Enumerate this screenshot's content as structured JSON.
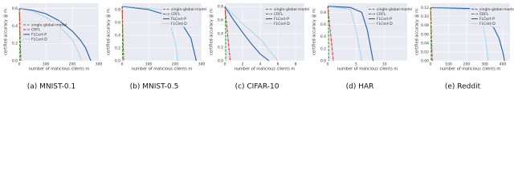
{
  "charts": [
    {
      "type": "line",
      "caption": "(a) MNIST-0.1",
      "xlabel": "number of malicious clients m",
      "ylabel": "certified accuracy @ m",
      "xlim": [
        0,
        300
      ],
      "xticks": [
        0,
        100,
        200,
        300
      ],
      "ylim": [
        0,
        0.66
      ],
      "yticks": [
        {
          "value": 0,
          "label": "0.0"
        },
        0.2,
        0.4,
        0.6
      ],
      "grid": true,
      "legend": "center left",
      "series": [
        {
          "name": "single-global-model",
          "color": "#2ca02c",
          "style": "dashed",
          "x": [
            0,
            1,
            2
          ],
          "values": [
            0.6,
            0.6,
            0
          ]
        },
        {
          "name": "CRFL",
          "color": "#d62728",
          "style": "dashdot",
          "x": [
            0,
            3,
            6
          ],
          "values": [
            0.6,
            0.3,
            0
          ]
        },
        {
          "name": "FLCert-P",
          "color": "#1f5fa8",
          "style": "solid",
          "x": [
            0,
            50,
            100,
            150,
            200,
            230,
            250,
            270
          ],
          "values": [
            0.6,
            0.58,
            0.54,
            0.46,
            0.34,
            0.24,
            0.15,
            0
          ]
        },
        {
          "name": "FLCert-D",
          "color": "#5bc0de",
          "style": "dotted",
          "x": [
            0,
            50,
            100,
            150,
            200,
            220,
            235
          ],
          "values": [
            0.6,
            0.57,
            0.5,
            0.4,
            0.24,
            0.12,
            0
          ]
        }
      ]
    },
    {
      "type": "line",
      "caption": "(b) MNIST-0.5",
      "xlabel": "number of malicious clients m",
      "ylabel": "certified accuracy @ m",
      "xlim": [
        0,
        300
      ],
      "xticks": [
        0,
        100,
        200,
        300
      ],
      "ylim": [
        0,
        0.9
      ],
      "yticks": [
        {
          "value": 0,
          "label": "0.0"
        },
        0.2,
        0.4,
        0.6,
        0.8
      ],
      "grid": true,
      "legend": "upper right",
      "series": [
        {
          "name": "single-global-model",
          "color": "#2ca02c",
          "style": "dashed",
          "x": [
            0,
            1,
            2
          ],
          "values": [
            0.85,
            0.85,
            0
          ]
        },
        {
          "name": "CRFL",
          "color": "#d62728",
          "style": "dashdot",
          "x": [
            0,
            3,
            6
          ],
          "values": [
            0.85,
            0.4,
            0
          ]
        },
        {
          "name": "FLCert-P",
          "color": "#1f5fa8",
          "style": "solid",
          "x": [
            0,
            100,
            180,
            230,
            260,
            280
          ],
          "values": [
            0.85,
            0.8,
            0.7,
            0.55,
            0.35,
            0
          ]
        },
        {
          "name": "FLCert-D",
          "color": "#5bc0de",
          "style": "dotted",
          "x": [
            0,
            150,
            180,
            200,
            210
          ],
          "values": [
            0.85,
            0.8,
            0.6,
            0.3,
            0
          ]
        }
      ]
    },
    {
      "type": "line",
      "caption": "(c) CIFAR-10",
      "xlabel": "number of malicious clients m",
      "ylabel": "certified accuracy @ m",
      "xlim": [
        0,
        9
      ],
      "xticks": [
        0,
        2,
        4,
        6,
        8
      ],
      "ylim": [
        0,
        0.85
      ],
      "yticks": [
        {
          "value": 0,
          "label": "0.0"
        },
        0.2,
        0.4,
        0.6,
        0.8
      ],
      "grid": true,
      "legend": "upper right",
      "series": [
        {
          "name": "single-global-model",
          "color": "#2ca02c",
          "style": "dashed",
          "x": [
            0,
            0.05,
            0.1
          ],
          "values": [
            0.8,
            0.8,
            0
          ]
        },
        {
          "name": "CRFL",
          "color": "#d62728",
          "style": "dashdot",
          "x": [
            0,
            0.3,
            0.6
          ],
          "values": [
            0.8,
            0.4,
            0
          ]
        },
        {
          "name": "FLCert-P",
          "color": "#1f5fa8",
          "style": "solid",
          "x": [
            0,
            1,
            2,
            3,
            4,
            5
          ],
          "values": [
            0.8,
            0.6,
            0.42,
            0.25,
            0.1,
            0
          ]
        },
        {
          "name": "FLCert-D",
          "color": "#5bc0de",
          "style": "dotted",
          "x": [
            0,
            2,
            4,
            5,
            6
          ],
          "values": [
            0.8,
            0.55,
            0.32,
            0.16,
            0
          ]
        }
      ]
    },
    {
      "type": "line",
      "caption": "(d) HAR",
      "xlabel": "number of malicious clients m",
      "ylabel": "certified accuracy @ m",
      "xlim": [
        0,
        14
      ],
      "xticks": [
        0,
        5,
        10
      ],
      "ylim": [
        0,
        0.95
      ],
      "yticks": [
        {
          "value": 0,
          "label": "0.0"
        },
        0.2,
        0.4,
        0.6,
        0.8
      ],
      "grid": true,
      "legend": "upper right",
      "series": [
        {
          "name": "single-global-model",
          "color": "#2ca02c",
          "style": "dashed",
          "x": [
            0,
            0.1,
            0.2
          ],
          "values": [
            0.9,
            0.9,
            0
          ]
        },
        {
          "name": "CRFL",
          "color": "#d62728",
          "style": "dashdot",
          "x": [
            0,
            0.5,
            1
          ],
          "values": [
            0.9,
            0.45,
            0
          ]
        },
        {
          "name": "FLCert-P",
          "color": "#1f5fa8",
          "style": "solid",
          "x": [
            0,
            4,
            6,
            7,
            8
          ],
          "values": [
            0.9,
            0.88,
            0.8,
            0.5,
            0
          ]
        },
        {
          "name": "FLCert-D",
          "color": "#5bc0de",
          "style": "dotted",
          "x": [
            0,
            4,
            5,
            6
          ],
          "values": [
            0.9,
            0.85,
            0.5,
            0
          ]
        }
      ]
    },
    {
      "type": "line",
      "caption": "(e) Reddit",
      "xlabel": "number of malicious clients m",
      "ylabel": "certified accuracy @ m",
      "xlim": [
        0,
        440
      ],
      "xticks": [
        0,
        100,
        200,
        300,
        400
      ],
      "ylim": [
        0,
        0.13
      ],
      "yticks": [
        {
          "value": 0,
          "label": "0.00"
        },
        {
          "value": 0.02,
          "label": "0.02"
        },
        {
          "value": 0.04,
          "label": "0.04"
        },
        {
          "value": 0.06,
          "label": "0.06"
        },
        {
          "value": 0.08,
          "label": "0.08"
        },
        {
          "value": 0.1,
          "label": "0.10"
        },
        {
          "value": 0.12,
          "label": "0.12"
        }
      ],
      "grid": true,
      "legend": "upper right",
      "series": [
        {
          "name": "single-global-model",
          "color": "#2ca02c",
          "style": "dashed",
          "x": [
            0,
            2,
            4
          ],
          "values": [
            0.12,
            0.12,
            0
          ]
        },
        {
          "name": "CRFL",
          "color": "#d62728",
          "style": "dashdot",
          "x": [
            0,
            5,
            10
          ],
          "values": [
            0.12,
            0.06,
            0
          ]
        },
        {
          "name": "FLCert-P",
          "color": "#1f5fa8",
          "style": "solid",
          "x": [
            0,
            250,
            300,
            330,
            350,
            380,
            400,
            410
          ],
          "values": [
            0.12,
            0.118,
            0.1,
            0.08,
            0.075,
            0.05,
            0.02,
            0
          ]
        },
        {
          "name": "FLCert-D",
          "color": "#5bc0de",
          "style": "dotted",
          "x": [
            0,
            250,
            290,
            310,
            320
          ],
          "values": [
            0.12,
            0.115,
            0.09,
            0.03,
            0
          ]
        }
      ]
    }
  ]
}
